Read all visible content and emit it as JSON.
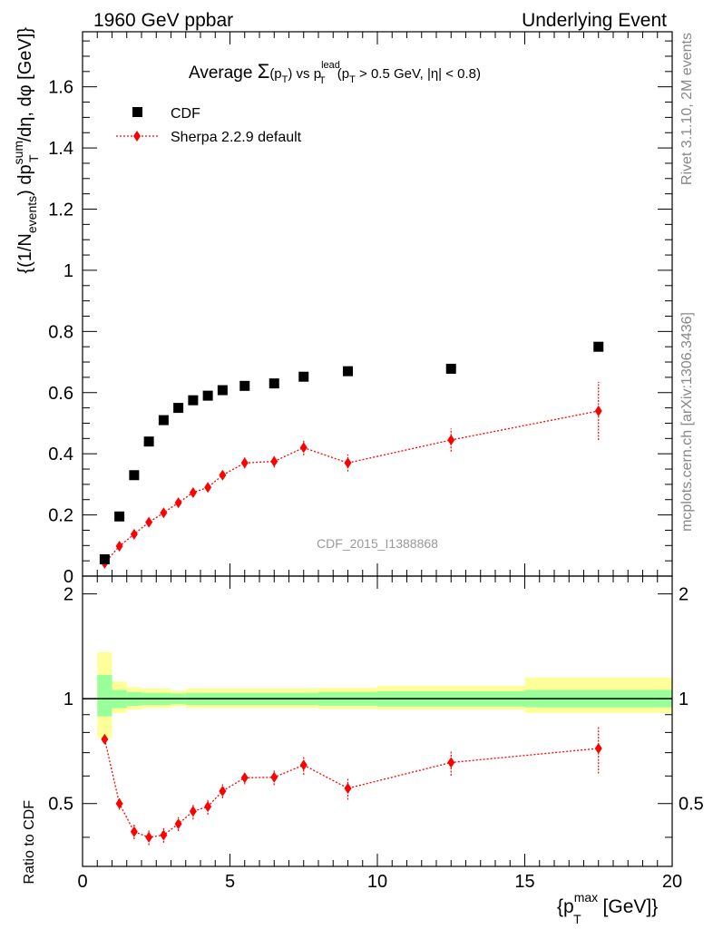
{
  "header": {
    "left": "1960 GeV ppbar",
    "right": "Underlying Event"
  },
  "side_labels": {
    "rivet": "Rivet 3.1.10,  2M events",
    "mcplots": "mcplots.cern.ch [arXiv:1306.3436]"
  },
  "chart_data": [
    {
      "type": "scatter",
      "title_parts": {
        "prefix": "Average ",
        "sigma": "Σ",
        "pt": "(p",
        "t_sub": "T",
        "close": ")",
        "vs": " vs p",
        "lead_sup": "lead",
        "lead_sub": "T",
        "cut": " (p",
        "cut_sub": "T",
        "cut_rest": " > 0.5 GeV, |η| < 0.8)"
      },
      "ylabel_parts": {
        "a": "{(1/N",
        "a_sub": "events",
        "b": ") dp",
        "b_sup": "sum",
        "b_sub": "T",
        "c": "/dη, dφ [GeV]}"
      },
      "xlim": [
        0,
        20
      ],
      "ylim": [
        0,
        1.78
      ],
      "yticks": [
        "0",
        "0.2",
        "0.4",
        "0.6",
        "0.8",
        "1",
        "1.2",
        "1.4",
        "1.6"
      ],
      "ytick_values": [
        0,
        0.2,
        0.4,
        0.6,
        0.8,
        1.0,
        1.2,
        1.4,
        1.6
      ],
      "watermark": "CDF_2015_I1388868",
      "legend_placement": "top-left",
      "series": [
        {
          "name": "CDF",
          "marker": "square",
          "color": "#000000",
          "x": [
            0.75,
            1.25,
            1.75,
            2.25,
            2.75,
            3.25,
            3.75,
            4.25,
            4.75,
            5.5,
            6.5,
            7.5,
            9.0,
            12.5,
            17.5
          ],
          "y": [
            0.055,
            0.195,
            0.33,
            0.44,
            0.51,
            0.55,
            0.575,
            0.59,
            0.608,
            0.622,
            0.63,
            0.652,
            0.67,
            0.678,
            0.75
          ]
        },
        {
          "name": "Sherpa 2.2.9 default",
          "marker": "diamond",
          "color": "#ff0000",
          "x": [
            0.75,
            1.25,
            1.75,
            2.25,
            2.75,
            3.25,
            3.75,
            4.25,
            4.75,
            5.5,
            6.5,
            7.5,
            9.0,
            12.5,
            17.5
          ],
          "y": [
            0.042,
            0.098,
            0.137,
            0.176,
            0.207,
            0.24,
            0.273,
            0.29,
            0.33,
            0.37,
            0.375,
            0.42,
            0.37,
            0.445,
            0.54
          ],
          "yerr": [
            0.006,
            0.008,
            0.01,
            0.01,
            0.01,
            0.012,
            0.012,
            0.014,
            0.015,
            0.018,
            0.02,
            0.025,
            0.028,
            0.038,
            0.095
          ]
        }
      ]
    },
    {
      "type": "scatter",
      "ylabel": "Ratio to CDF",
      "xlabel_parts": {
        "a": "{p",
        "sup": "max",
        "sub": "T",
        "b": " [GeV]}"
      },
      "xlim": [
        0,
        20
      ],
      "ylim": [
        0.33,
        2.25
      ],
      "xticks": [
        "0",
        "5",
        "10",
        "15",
        "20"
      ],
      "xtick_values": [
        0,
        5,
        10,
        15,
        20
      ],
      "yticks": [
        "0.5",
        "1",
        "2"
      ],
      "ytick_values": [
        0.5,
        1.0,
        2.0
      ],
      "bands": [
        {
          "x0": 0.5,
          "x1": 1.0,
          "g": [
            0.89,
            1.17
          ],
          "y": [
            0.77,
            1.36
          ]
        },
        {
          "x0": 1.0,
          "x1": 1.5,
          "g": [
            0.94,
            1.06
          ],
          "y": [
            0.91,
            1.12
          ]
        },
        {
          "x0": 1.5,
          "x1": 2.0,
          "g": [
            0.955,
            1.045
          ],
          "y": [
            0.93,
            1.08
          ]
        },
        {
          "x0": 2.0,
          "x1": 3.0,
          "g": [
            0.96,
            1.04
          ],
          "y": [
            0.94,
            1.07
          ]
        },
        {
          "x0": 3.0,
          "x1": 3.5,
          "g": [
            0.965,
            1.035
          ],
          "y": [
            0.95,
            1.055
          ]
        },
        {
          "x0": 3.5,
          "x1": 8.0,
          "g": [
            0.96,
            1.04
          ],
          "y": [
            0.94,
            1.07
          ]
        },
        {
          "x0": 8.0,
          "x1": 10.0,
          "g": [
            0.955,
            1.045
          ],
          "y": [
            0.935,
            1.075
          ]
        },
        {
          "x0": 10.0,
          "x1": 15.0,
          "g": [
            0.95,
            1.05
          ],
          "y": [
            0.93,
            1.09
          ]
        },
        {
          "x0": 15.0,
          "x1": 20.0,
          "g": [
            0.945,
            1.06
          ],
          "y": [
            0.91,
            1.15
          ]
        }
      ],
      "series": [
        {
          "name": "Sherpa 2.2.9 default",
          "color": "#ff0000",
          "x": [
            0.75,
            1.25,
            1.75,
            2.25,
            2.75,
            3.25,
            3.75,
            4.25,
            4.75,
            5.5,
            6.5,
            7.5,
            9.0,
            12.5,
            17.5
          ],
          "y": [
            0.765,
            0.5,
            0.415,
            0.4,
            0.406,
            0.437,
            0.475,
            0.49,
            0.543,
            0.593,
            0.595,
            0.645,
            0.553,
            0.656,
            0.72
          ],
          "yerr": [
            0.02,
            0.02,
            0.02,
            0.02,
            0.02,
            0.02,
            0.025,
            0.025,
            0.025,
            0.025,
            0.03,
            0.04,
            0.04,
            0.055,
            0.11
          ]
        }
      ]
    }
  ]
}
